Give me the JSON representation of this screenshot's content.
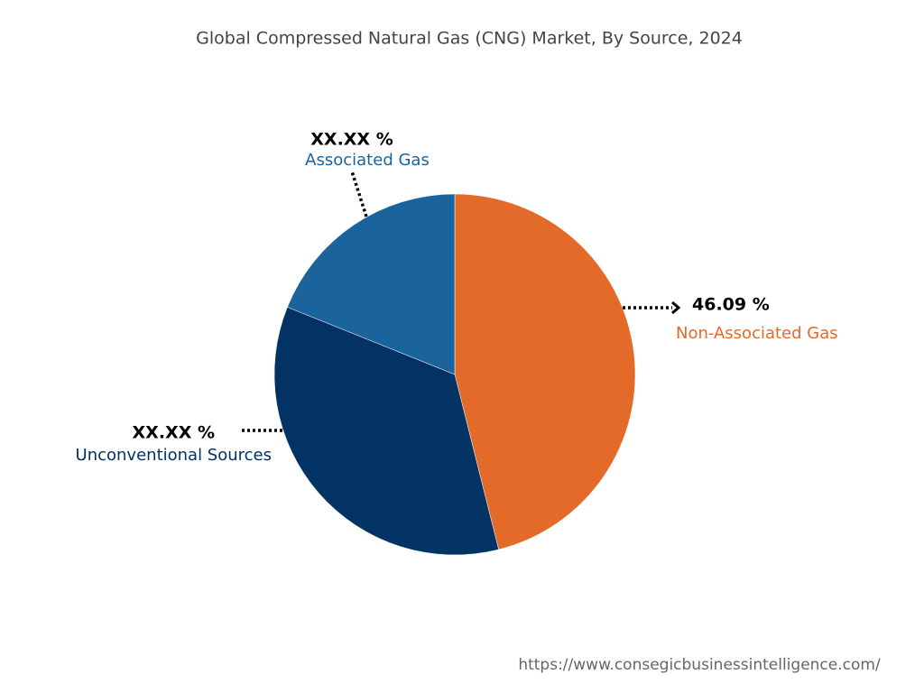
{
  "chart_data": {
    "type": "pie",
    "title": "Global Compressed Natural Gas (CNG) Market, By Source, 2024",
    "categories": [
      "Non-Associated Gas",
      "Unconventional Sources",
      "Associated Gas"
    ],
    "values": [
      46.09,
      35.0,
      18.91
    ],
    "value_labels": [
      "46.09 %",
      "XX.XX %",
      "XX.XX %"
    ],
    "colors": [
      "#e36a28",
      "#033264",
      "#1a639d"
    ],
    "source": "https://www.consegicbusinessintelligence.com/"
  }
}
